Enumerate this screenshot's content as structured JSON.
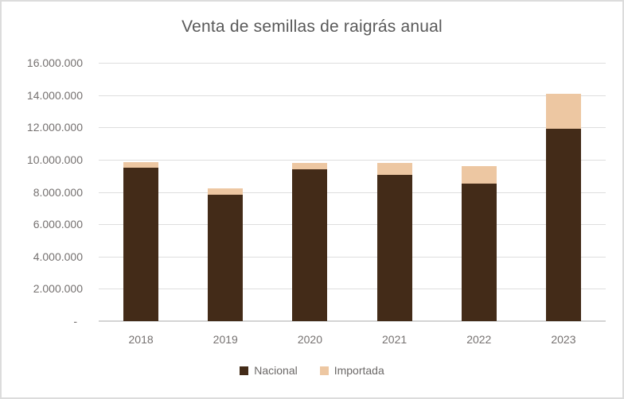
{
  "chart_data": {
    "type": "bar",
    "stacked": true,
    "title": "Venta de semillas de raigrás anual",
    "categories": [
      "2018",
      "2019",
      "2020",
      "2021",
      "2022",
      "2023"
    ],
    "series": [
      {
        "name": "Nacional",
        "color": "#432B18",
        "values": [
          9500000,
          7850000,
          9400000,
          9050000,
          8500000,
          11900000
        ]
      },
      {
        "name": "Importada",
        "color": "#EDC7A2",
        "values": [
          350000,
          350000,
          400000,
          750000,
          1100000,
          2200000
        ]
      }
    ],
    "ylim": [
      0,
      16000000
    ],
    "ytick_step": 2000000,
    "ytick_labels": [
      "16.000.000",
      "14.000.000",
      "12.000.000",
      "10.000.000",
      "8.000.000",
      "6.000.000",
      "4.000.000",
      "2.000.000",
      "-"
    ],
    "grid": true,
    "legend_position": "bottom",
    "colors": {
      "background": "#ffffff",
      "border": "#dcdcdc",
      "gridline": "#dedede",
      "axis_line": "#d4d4d4",
      "title_text": "#595959",
      "axis_text": "#757170",
      "legend_text": "#6b6867"
    }
  }
}
